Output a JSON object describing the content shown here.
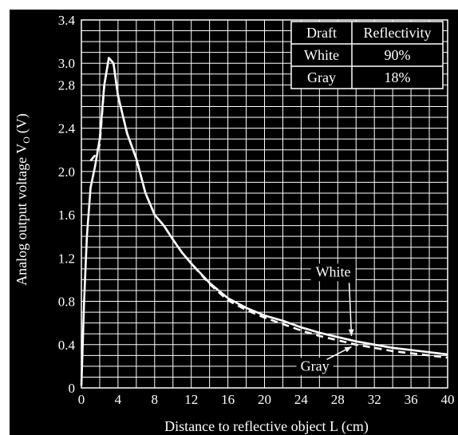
{
  "chart_data": {
    "type": "line",
    "xlabel": "Distance to reflective object L (cm)",
    "ylabel": "Analog output voltage V",
    "ylabel_sub": "O",
    "ylabel_unit": "(V)",
    "xlim": [
      0,
      40
    ],
    "ylim": [
      0,
      3.4
    ],
    "x_ticks": [
      0,
      4,
      8,
      12,
      16,
      20,
      24,
      28,
      32,
      36,
      40
    ],
    "y_ticks": [
      "0",
      "0.4",
      "0.8",
      "1.2",
      "1.6",
      "2.0",
      "2.4",
      "2.8",
      "3.0",
      "3.4"
    ],
    "y_tick_values": [
      0,
      0.4,
      0.8,
      1.2,
      1.6,
      2.0,
      2.4,
      2.8,
      3.0,
      3.4
    ],
    "grid": true,
    "series": [
      {
        "name": "White",
        "style": "solid",
        "points": [
          [
            0,
            0.02
          ],
          [
            0.3,
            0.8
          ],
          [
            0.6,
            1.4
          ],
          [
            1.0,
            1.85
          ],
          [
            1.5,
            2.05
          ],
          [
            2.0,
            2.3
          ],
          [
            2.5,
            2.8
          ],
          [
            3.0,
            3.05
          ],
          [
            3.5,
            3.0
          ],
          [
            4.0,
            2.7
          ],
          [
            5.0,
            2.35
          ],
          [
            6.0,
            2.12
          ],
          [
            7.0,
            1.8
          ],
          [
            8.0,
            1.6
          ],
          [
            9.0,
            1.5
          ],
          [
            10.0,
            1.37
          ],
          [
            11.0,
            1.25
          ],
          [
            12.0,
            1.15
          ],
          [
            14.0,
            0.97
          ],
          [
            16.0,
            0.83
          ],
          [
            18.0,
            0.74
          ],
          [
            20.0,
            0.67
          ],
          [
            22.0,
            0.62
          ],
          [
            24.0,
            0.56
          ],
          [
            26.0,
            0.51
          ],
          [
            28.0,
            0.47
          ],
          [
            30.0,
            0.43
          ],
          [
            32.0,
            0.4
          ],
          [
            34.0,
            0.37
          ],
          [
            36.0,
            0.35
          ],
          [
            38.0,
            0.33
          ],
          [
            40.0,
            0.31
          ]
        ]
      },
      {
        "name": "Gray",
        "style": "dashed",
        "points": [
          [
            1.0,
            2.1
          ],
          [
            1.5,
            2.15
          ],
          [
            2.0,
            2.25
          ],
          [
            2.5,
            2.8
          ],
          [
            3.0,
            3.05
          ],
          [
            3.5,
            3.0
          ],
          [
            4.0,
            2.7
          ],
          [
            5.0,
            2.35
          ],
          [
            6.0,
            2.12
          ],
          [
            7.0,
            1.8
          ],
          [
            8.0,
            1.6
          ],
          [
            9.0,
            1.5
          ],
          [
            10.0,
            1.37
          ],
          [
            11.0,
            1.25
          ],
          [
            12.0,
            1.15
          ],
          [
            14.0,
            0.96
          ],
          [
            16.0,
            0.81
          ],
          [
            18.0,
            0.72
          ],
          [
            20.0,
            0.65
          ],
          [
            22.0,
            0.59
          ],
          [
            24.0,
            0.53
          ],
          [
            26.0,
            0.48
          ],
          [
            28.0,
            0.44
          ],
          [
            30.0,
            0.4
          ],
          [
            32.0,
            0.37
          ],
          [
            34.0,
            0.34
          ],
          [
            36.0,
            0.32
          ],
          [
            38.0,
            0.3
          ],
          [
            40.0,
            0.28
          ]
        ]
      }
    ],
    "annotations": [
      {
        "text": "White",
        "x": 27.5,
        "y": 1.03,
        "arrow_to": [
          29.5,
          0.48
        ]
      },
      {
        "text": "Gray",
        "x": 25.5,
        "y": 0.16,
        "arrow_to": [
          29.5,
          0.38
        ]
      }
    ],
    "legend_table": {
      "headers": [
        "Draft",
        "Reflectivity"
      ],
      "rows": [
        [
          "White",
          "90%"
        ],
        [
          "Gray",
          "18%"
        ]
      ]
    },
    "legend_placement": "top-right"
  }
}
